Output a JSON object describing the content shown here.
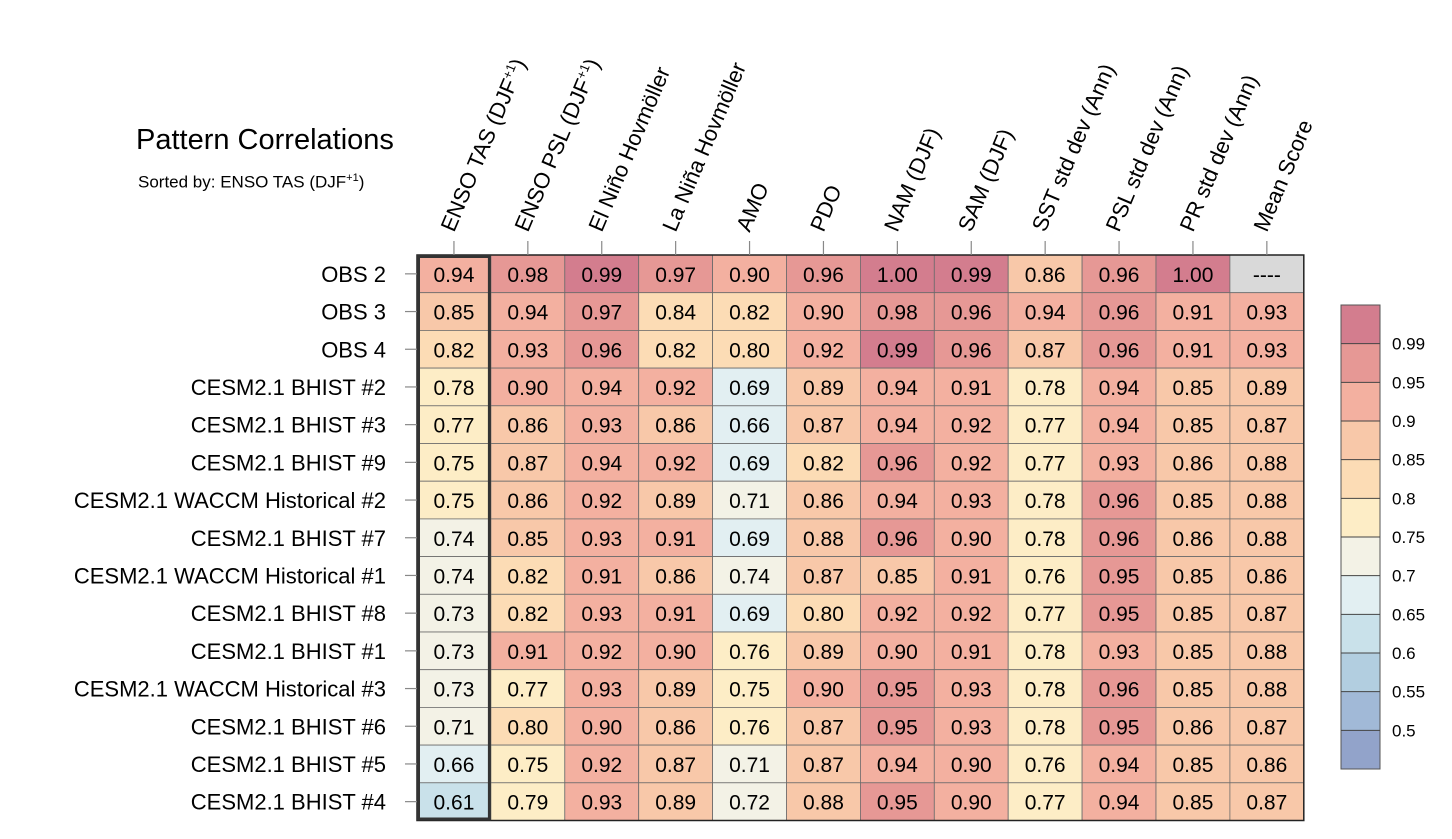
{
  "chart_data": {
    "type": "heatmap",
    "title": "Pattern Correlations",
    "subtitle": {
      "prefix": "Sorted by: ENSO TAS (DJF",
      "sup": "+1",
      "suffix": ")"
    },
    "columns": [
      {
        "label": "ENSO TAS (DJF",
        "sup": "+1",
        "suffix": ")"
      },
      {
        "label": "ENSO PSL (DJF",
        "sup": "+1",
        "suffix": ")"
      },
      {
        "label": "El Niño Hovmöller",
        "sup": "",
        "suffix": ""
      },
      {
        "label": "La Niña Hovmöller",
        "sup": "",
        "suffix": ""
      },
      {
        "label": "AMO",
        "sup": "",
        "suffix": ""
      },
      {
        "label": "PDO",
        "sup": "",
        "suffix": ""
      },
      {
        "label": "NAM (DJF)",
        "sup": "",
        "suffix": ""
      },
      {
        "label": "SAM (DJF)",
        "sup": "",
        "suffix": ""
      },
      {
        "label": "SST std dev (Ann)",
        "sup": "",
        "suffix": ""
      },
      {
        "label": "PSL std dev (Ann)",
        "sup": "",
        "suffix": ""
      },
      {
        "label": "PR std dev (Ann)",
        "sup": "",
        "suffix": ""
      },
      {
        "label": "Mean Score",
        "sup": "",
        "suffix": ""
      }
    ],
    "rows": [
      {
        "label": "OBS 2",
        "values": [
          "0.94",
          "0.98",
          "0.99",
          "0.97",
          "0.90",
          "0.96",
          "1.00",
          "0.99",
          "0.86",
          "0.96",
          "1.00",
          "----"
        ]
      },
      {
        "label": "OBS 3",
        "values": [
          "0.85",
          "0.94",
          "0.97",
          "0.84",
          "0.82",
          "0.90",
          "0.98",
          "0.96",
          "0.94",
          "0.96",
          "0.91",
          "0.93"
        ]
      },
      {
        "label": "OBS 4",
        "values": [
          "0.82",
          "0.93",
          "0.96",
          "0.82",
          "0.80",
          "0.92",
          "0.99",
          "0.96",
          "0.87",
          "0.96",
          "0.91",
          "0.93"
        ]
      },
      {
        "label": "CESM2.1 BHIST #2",
        "values": [
          "0.78",
          "0.90",
          "0.94",
          "0.92",
          "0.69",
          "0.89",
          "0.94",
          "0.91",
          "0.78",
          "0.94",
          "0.85",
          "0.89"
        ]
      },
      {
        "label": "CESM2.1 BHIST #3",
        "values": [
          "0.77",
          "0.86",
          "0.93",
          "0.86",
          "0.66",
          "0.87",
          "0.94",
          "0.92",
          "0.77",
          "0.94",
          "0.85",
          "0.87"
        ]
      },
      {
        "label": "CESM2.1 BHIST #9",
        "values": [
          "0.75",
          "0.87",
          "0.94",
          "0.92",
          "0.69",
          "0.82",
          "0.96",
          "0.92",
          "0.77",
          "0.93",
          "0.86",
          "0.88"
        ]
      },
      {
        "label": "CESM2.1 WACCM Historical #2",
        "values": [
          "0.75",
          "0.86",
          "0.92",
          "0.89",
          "0.71",
          "0.86",
          "0.94",
          "0.93",
          "0.78",
          "0.96",
          "0.85",
          "0.88"
        ]
      },
      {
        "label": "CESM2.1 BHIST #7",
        "values": [
          "0.74",
          "0.85",
          "0.93",
          "0.91",
          "0.69",
          "0.88",
          "0.96",
          "0.90",
          "0.78",
          "0.96",
          "0.86",
          "0.88"
        ]
      },
      {
        "label": "CESM2.1 WACCM Historical #1",
        "values": [
          "0.74",
          "0.82",
          "0.91",
          "0.86",
          "0.74",
          "0.87",
          "0.85",
          "0.91",
          "0.76",
          "0.95",
          "0.85",
          "0.86"
        ]
      },
      {
        "label": "CESM2.1 BHIST #8",
        "values": [
          "0.73",
          "0.82",
          "0.93",
          "0.91",
          "0.69",
          "0.80",
          "0.92",
          "0.92",
          "0.77",
          "0.95",
          "0.85",
          "0.87"
        ]
      },
      {
        "label": "CESM2.1 BHIST #1",
        "values": [
          "0.73",
          "0.91",
          "0.92",
          "0.90",
          "0.76",
          "0.89",
          "0.90",
          "0.91",
          "0.78",
          "0.93",
          "0.85",
          "0.88"
        ]
      },
      {
        "label": "CESM2.1 WACCM Historical #3",
        "values": [
          "0.73",
          "0.77",
          "0.93",
          "0.89",
          "0.75",
          "0.90",
          "0.95",
          "0.93",
          "0.78",
          "0.96",
          "0.85",
          "0.88"
        ]
      },
      {
        "label": "CESM2.1 BHIST #6",
        "values": [
          "0.71",
          "0.80",
          "0.90",
          "0.86",
          "0.76",
          "0.87",
          "0.95",
          "0.93",
          "0.78",
          "0.95",
          "0.86",
          "0.87"
        ]
      },
      {
        "label": "CESM2.1 BHIST #5",
        "values": [
          "0.66",
          "0.75",
          "0.92",
          "0.87",
          "0.71",
          "0.87",
          "0.94",
          "0.90",
          "0.76",
          "0.94",
          "0.85",
          "0.86"
        ]
      },
      {
        "label": "CESM2.1 BHIST #4",
        "values": [
          "0.61",
          "0.79",
          "0.93",
          "0.89",
          "0.72",
          "0.88",
          "0.95",
          "0.90",
          "0.77",
          "0.94",
          "0.85",
          "0.87"
        ]
      }
    ],
    "missing_value_label": "----",
    "sorted_by_column": 0,
    "colorbar": {
      "labels": [
        "0.99",
        "0.95",
        "0.9",
        "0.85",
        "0.8",
        "0.75",
        "0.7",
        "0.65",
        "0.6",
        "0.55",
        "0.5"
      ],
      "thresholds": [
        0.99,
        0.95,
        0.9,
        0.85,
        0.8,
        0.75,
        0.7,
        0.65,
        0.6,
        0.55,
        0.5
      ],
      "colors_top_to_bottom": [
        "#d37d8e",
        "#e69895",
        "#f3b0a0",
        "#f8c8a9",
        "#fcdcb5",
        "#fdedc6",
        "#f3f2e6",
        "#e2eff2",
        "#c9e1ea",
        "#b2cee0",
        "#a1b9d7",
        "#92a3ca"
      ],
      "missing_color": "#d9d9d9"
    }
  }
}
